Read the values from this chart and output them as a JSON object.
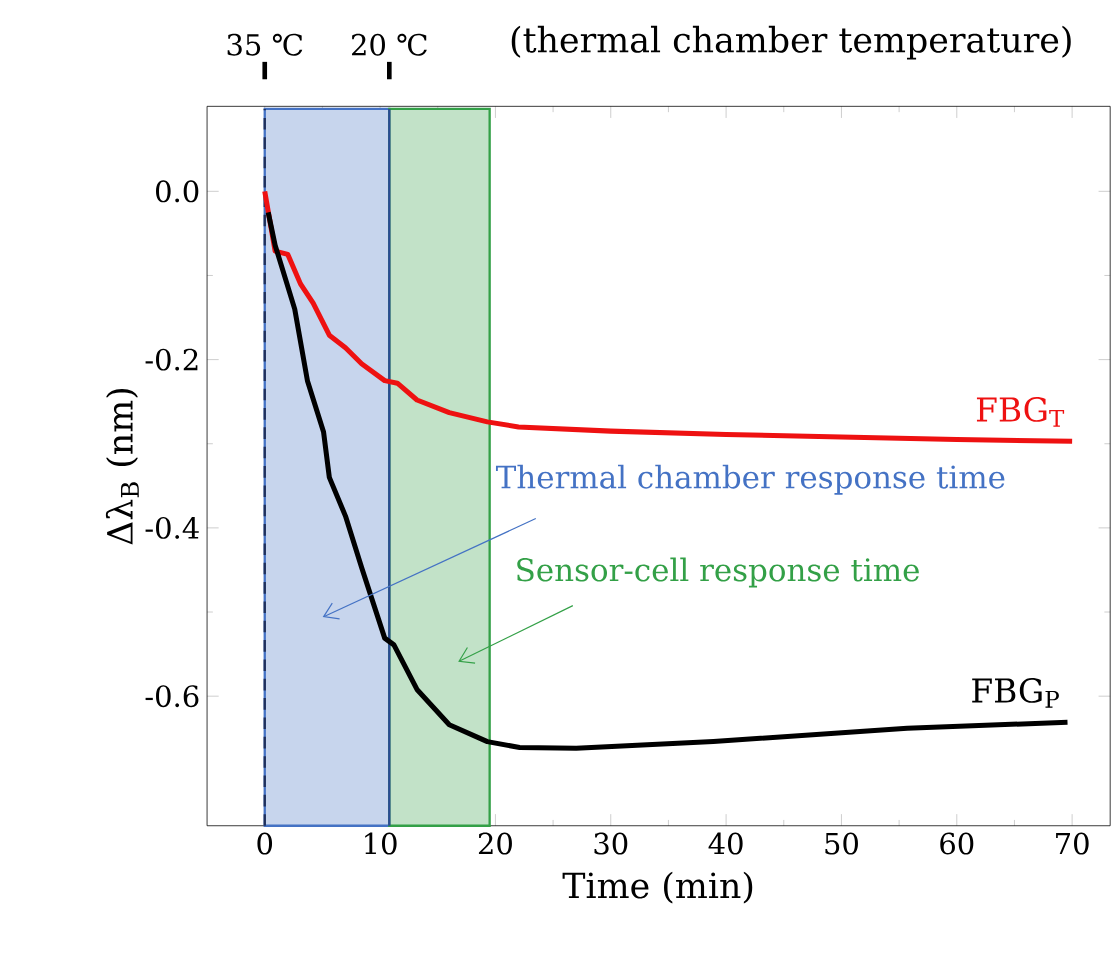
{
  "chart_data": {
    "type": "line",
    "xlabel": "Time (min)",
    "ylabel": "Δλ$_{B}$ (nm)",
    "xlim": [
      -5,
      73.3
    ],
    "xticks": [
      0,
      10,
      20,
      30,
      40,
      50,
      60,
      70
    ],
    "ylim": [
      -0.754,
      0.101
    ],
    "yticks": [
      {
        "value": 0,
        "label": "0.0"
      },
      {
        "value": -0.2,
        "label": "-0.2"
      },
      {
        "value": -0.4,
        "label": "-0.4"
      },
      {
        "value": -0.6,
        "label": "-0.6"
      }
    ],
    "marker": "none",
    "line_style": "solid",
    "grid": false,
    "series": [
      {
        "name": "FBG$_{T}$",
        "color": "#ee1111",
        "x": [
          0,
          0.9,
          2.0,
          3.1,
          4.2,
          5.6,
          7.0,
          8.4,
          10.4,
          11.5,
          13.2,
          16.0,
          19.3,
          22,
          30,
          40,
          50,
          60,
          70
        ],
        "values": [
          0.0,
          -0.071,
          -0.075,
          -0.11,
          -0.133,
          -0.171,
          -0.186,
          -0.205,
          -0.225,
          -0.228,
          -0.248,
          -0.263,
          -0.274,
          -0.28,
          -0.285,
          -0.289,
          -0.292,
          -0.295,
          -0.297
        ]
      },
      {
        "name": "FBG$_{P}$",
        "color": "#000000",
        "x": [
          0.3,
          0.9,
          2.6,
          3.7,
          5.1,
          5.6,
          7.0,
          8.4,
          10.4,
          11.2,
          13.2,
          16.0,
          19.3,
          22.1,
          27,
          38.9,
          55.7,
          69.6
        ],
        "values": [
          -0.025,
          -0.064,
          -0.14,
          -0.225,
          -0.286,
          -0.34,
          -0.386,
          -0.447,
          -0.531,
          -0.539,
          -0.592,
          -0.634,
          -0.654,
          -0.661,
          -0.662,
          -0.654,
          -0.638,
          -0.631
        ]
      }
    ],
    "bands": [
      {
        "axis": "x",
        "from": 0,
        "to": 10.8,
        "color": "#4472c4"
      },
      {
        "axis": "x",
        "from": 10.8,
        "to": 19.5,
        "color": "#33a047"
      }
    ],
    "ref_lines": [
      {
        "axis": "x",
        "value": 0,
        "label": "35 ℃",
        "color": "#1f2f5a",
        "line_style": "dashed"
      },
      {
        "axis": "x",
        "value": 10.8,
        "label": "20 ℃",
        "color": "#2b4a94",
        "line_style": "solid"
      }
    ],
    "annotations": [
      "(thermal chamber temperature)",
      "Thermal chamber response time",
      "Sensor-cell response time"
    ]
  }
}
